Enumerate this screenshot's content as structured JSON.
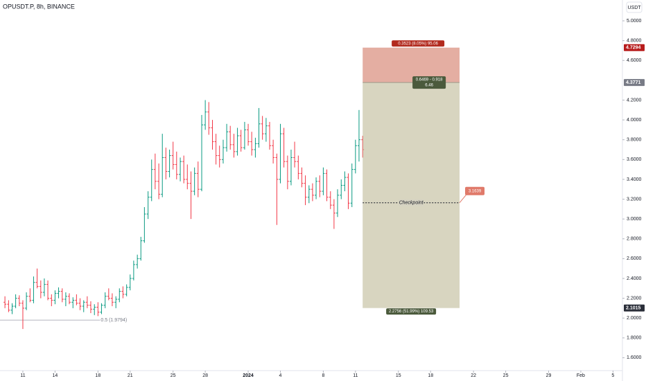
{
  "chart_data": {
    "type": "ohlc",
    "title": "OPUSDT.P, 8h, BINANCE",
    "currency": "USDT",
    "up_color": "#089981",
    "down_color": "#f23645",
    "xlim": [
      8.87,
      66.88
    ],
    "xticks": [
      {
        "value": 11,
        "label": "11"
      },
      {
        "value": 14,
        "label": "14"
      },
      {
        "value": 18,
        "label": "18"
      },
      {
        "value": 21,
        "label": "21"
      },
      {
        "value": 25,
        "label": "25"
      },
      {
        "value": 28,
        "label": "28"
      },
      {
        "value": 32,
        "label": "2024"
      },
      {
        "value": 35,
        "label": "4"
      },
      {
        "value": 39,
        "label": "8"
      },
      {
        "value": 42,
        "label": "11"
      },
      {
        "value": 46,
        "label": "15"
      },
      {
        "value": 49,
        "label": "18"
      },
      {
        "value": 53,
        "label": "22"
      },
      {
        "value": 56,
        "label": "25"
      },
      {
        "value": 60,
        "label": "29"
      },
      {
        "value": 63,
        "label": "Feb"
      },
      {
        "value": 66,
        "label": "5"
      }
    ],
    "ylim": [
      1.47,
      5.21
    ],
    "yticks": [
      {
        "value": 1.6,
        "label": "1.6000"
      },
      {
        "value": 1.8,
        "label": "1.8000"
      },
      {
        "value": 2.0,
        "label": "2.0000"
      },
      {
        "value": 2.2,
        "label": "2.2000"
      },
      {
        "value": 2.4,
        "label": "2.4000"
      },
      {
        "value": 2.6,
        "label": "2.6000"
      },
      {
        "value": 2.8,
        "label": "2.8000"
      },
      {
        "value": 3.0,
        "label": "3.0000"
      },
      {
        "value": 3.2,
        "label": "3.2000"
      },
      {
        "value": 3.4,
        "label": "3.4000"
      },
      {
        "value": 3.6,
        "label": "3.6000"
      },
      {
        "value": 3.8,
        "label": "3.8000"
      },
      {
        "value": 4.0,
        "label": "4.0000"
      },
      {
        "value": 4.2,
        "label": "4.2000"
      },
      {
        "value": 4.6,
        "label": "4.6000"
      },
      {
        "value": 4.8,
        "label": "4.8000"
      },
      {
        "value": 5.0,
        "label": "5.0000"
      }
    ],
    "x": [
      9.33,
      9.67,
      10,
      10.33,
      10.67,
      11,
      11.33,
      11.67,
      12,
      12.33,
      12.67,
      13,
      13.33,
      13.67,
      14,
      14.33,
      14.67,
      15,
      15.33,
      15.67,
      16,
      16.33,
      16.67,
      17,
      17.33,
      17.67,
      18,
      18.33,
      18.67,
      19,
      19.33,
      19.67,
      20,
      20.33,
      20.67,
      21,
      21.33,
      21.67,
      22,
      22.33,
      22.67,
      23,
      23.33,
      23.67,
      24,
      24.33,
      24.67,
      25,
      25.33,
      25.67,
      26,
      26.33,
      26.67,
      27,
      27.33,
      27.67,
      28,
      28.33,
      28.67,
      29,
      29.33,
      29.67,
      30,
      30.33,
      30.67,
      31,
      31.33,
      31.67,
      32,
      32.33,
      32.67,
      33,
      33.33,
      33.67,
      34,
      34.33,
      34.67,
      35,
      35.33,
      35.67,
      36,
      36.33,
      36.67,
      37,
      37.33,
      37.67,
      38,
      38.33,
      38.67,
      39,
      39.33,
      39.67,
      40,
      40.33,
      40.67,
      41,
      41.33,
      41.67,
      42,
      42.33,
      42.67
    ],
    "open": [
      2.16,
      2.14,
      2.08,
      2.12,
      2.2,
      2.15,
      2.1,
      2.22,
      2.18,
      2.36,
      2.32,
      2.26,
      2.34,
      2.2,
      2.18,
      2.25,
      2.27,
      2.19,
      2.22,
      2.16,
      2.18,
      2.15,
      2.12,
      2.16,
      2.13,
      2.09,
      2.11,
      2.06,
      2.13,
      2.22,
      2.2,
      2.16,
      2.19,
      2.27,
      2.24,
      2.31,
      2.4,
      2.54,
      2.6,
      2.78,
      3.05,
      3.22,
      3.5,
      3.38,
      3.25,
      3.62,
      3.48,
      3.64,
      3.55,
      3.45,
      3.58,
      3.4,
      3.36,
      3.28,
      3.46,
      3.3,
      3.95,
      4.08,
      3.92,
      3.78,
      3.64,
      3.6,
      3.72,
      3.88,
      3.75,
      3.68,
      3.84,
      3.72,
      3.9,
      3.78,
      3.7,
      3.76,
      3.96,
      3.86,
      3.94,
      3.74,
      3.62,
      3.4,
      3.86,
      3.58,
      3.38,
      3.62,
      3.58,
      3.46,
      3.36,
      3.22,
      3.3,
      3.24,
      3.38,
      3.28,
      3.46,
      3.22,
      3.14,
      3.06,
      3.24,
      3.34,
      3.42,
      3.16,
      3.5,
      3.74,
      3.8
    ],
    "high": [
      2.22,
      2.18,
      2.15,
      2.24,
      2.23,
      2.18,
      2.26,
      2.3,
      2.42,
      2.5,
      2.38,
      2.4,
      2.38,
      2.24,
      2.28,
      2.31,
      2.3,
      2.26,
      2.25,
      2.21,
      2.24,
      2.2,
      2.18,
      2.22,
      2.17,
      2.14,
      2.16,
      2.15,
      2.26,
      2.3,
      2.25,
      2.22,
      2.3,
      2.32,
      2.34,
      2.44,
      2.58,
      2.64,
      2.82,
      3.12,
      3.28,
      3.6,
      3.66,
      3.56,
      3.86,
      3.72,
      3.7,
      3.78,
      3.68,
      3.62,
      3.64,
      3.55,
      3.48,
      3.52,
      3.58,
      4.05,
      4.2,
      4.18,
      4.0,
      3.86,
      3.74,
      3.8,
      3.96,
      3.94,
      3.86,
      3.92,
      3.9,
      3.98,
      3.96,
      3.88,
      3.82,
      4.12,
      4.04,
      4.02,
      3.98,
      3.8,
      3.66,
      3.96,
      3.92,
      3.64,
      3.7,
      3.78,
      3.64,
      3.52,
      3.44,
      3.34,
      3.36,
      3.42,
      3.44,
      3.52,
      3.5,
      3.28,
      3.2,
      3.3,
      3.4,
      3.48,
      3.46,
      3.56,
      3.8,
      4.1,
      3.84
    ],
    "low": [
      2.1,
      2.06,
      2.04,
      2.1,
      2.12,
      1.89,
      2.08,
      2.16,
      2.15,
      2.3,
      2.2,
      2.22,
      2.18,
      2.12,
      2.14,
      2.2,
      2.16,
      2.12,
      2.14,
      2.1,
      2.13,
      2.08,
      2.06,
      2.1,
      2.05,
      2.03,
      2.02,
      2.04,
      2.1,
      2.18,
      2.12,
      2.1,
      2.16,
      2.2,
      2.22,
      2.28,
      2.38,
      2.5,
      2.58,
      2.76,
      3.0,
      3.18,
      3.3,
      3.2,
      3.22,
      3.4,
      3.42,
      3.5,
      3.4,
      3.38,
      3.36,
      3.3,
      3.0,
      3.24,
      3.22,
      3.28,
      3.9,
      3.85,
      3.7,
      3.55,
      3.52,
      3.56,
      3.68,
      3.7,
      3.62,
      3.64,
      3.68,
      3.7,
      3.74,
      3.64,
      3.62,
      3.72,
      3.8,
      3.78,
      3.7,
      3.56,
      2.94,
      3.36,
      3.52,
      3.3,
      3.34,
      3.52,
      3.4,
      3.32,
      3.14,
      3.16,
      3.18,
      3.2,
      3.22,
      3.24,
      3.18,
      3.1,
      2.9,
      3.02,
      3.2,
      3.28,
      3.1,
      3.12,
      3.46,
      3.58,
      3.62
    ],
    "close": [
      2.14,
      2.08,
      2.12,
      2.2,
      2.15,
      2.1,
      2.22,
      2.18,
      2.36,
      2.32,
      2.26,
      2.34,
      2.2,
      2.18,
      2.25,
      2.27,
      2.19,
      2.22,
      2.16,
      2.18,
      2.15,
      2.12,
      2.16,
      2.13,
      2.09,
      2.11,
      2.06,
      2.13,
      2.22,
      2.2,
      2.16,
      2.19,
      2.27,
      2.24,
      2.31,
      2.4,
      2.54,
      2.6,
      2.78,
      3.05,
      3.22,
      3.5,
      3.38,
      3.25,
      3.62,
      3.48,
      3.64,
      3.55,
      3.45,
      3.58,
      3.4,
      3.36,
      3.28,
      3.46,
      3.3,
      3.95,
      4.08,
      3.92,
      3.78,
      3.64,
      3.6,
      3.72,
      3.88,
      3.75,
      3.68,
      3.84,
      3.72,
      3.9,
      3.78,
      3.7,
      3.76,
      3.96,
      3.86,
      3.94,
      3.74,
      3.62,
      3.4,
      3.86,
      3.58,
      3.38,
      3.62,
      3.58,
      3.46,
      3.36,
      3.22,
      3.3,
      3.24,
      3.38,
      3.28,
      3.46,
      3.22,
      3.14,
      3.06,
      3.24,
      3.34,
      3.42,
      3.16,
      3.5,
      3.74,
      3.8,
      3.7
    ],
    "fib": {
      "price": 1.9794,
      "x_end": 18.2,
      "label": "0.5 (1.9794)"
    },
    "position": {
      "x_start": 42.67,
      "x_end": 51.7,
      "stop": 4.7294,
      "entry": 4.3771,
      "target": 2.1015,
      "stop_label": "0.3523 (8.05%) 95.06",
      "entry_label": [
        "0.6469 - 0.918",
        "6.46"
      ],
      "target_label": "2.2756 (51.99%) 109.53",
      "checkpoint_text": "Checkpoint",
      "checkpoint": 3.1639
    }
  }
}
